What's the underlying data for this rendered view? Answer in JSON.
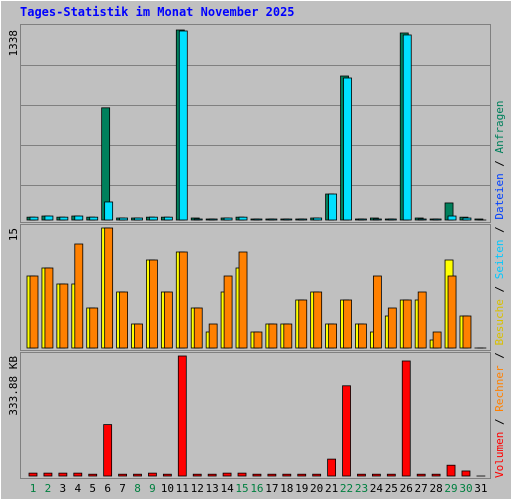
{
  "title": "Tages-Statistik im Monat November 2025",
  "legend": [
    {
      "name": "Volumen",
      "color": "#ff0000"
    },
    {
      "name": "Rechner",
      "color": "#ff8000"
    },
    {
      "name": "Besuche",
      "color": "#d8c000"
    },
    {
      "name": "Seiten",
      "color": "#00c8ff"
    },
    {
      "name": "Dateien",
      "color": "#0040ff"
    },
    {
      "name": "Anfragen",
      "color": "#00805c"
    }
  ],
  "legend_separator": " / ",
  "chart_data": [
    {
      "type": "bar",
      "ylim": [
        0,
        1338
      ],
      "yticks": [
        1338
      ],
      "series": [
        {
          "color": "#00805c",
          "values": [
            20,
            28,
            20,
            28,
            20,
            790,
            14,
            14,
            20,
            20,
            1338,
            14,
            7,
            14,
            20,
            7,
            7,
            7,
            7,
            14,
            183,
            1014,
            7,
            14,
            7,
            1317,
            14,
            7,
            120,
            20,
            7
          ]
        },
        {
          "color": "#00e0ff",
          "values": [
            20,
            28,
            20,
            28,
            20,
            127,
            14,
            14,
            20,
            20,
            1331,
            7,
            7,
            14,
            20,
            7,
            7,
            7,
            7,
            14,
            183,
            1000,
            7,
            7,
            7,
            1303,
            7,
            7,
            28,
            14,
            0
          ]
        }
      ]
    },
    {
      "type": "bar",
      "ylim": [
        0,
        15
      ],
      "yticks": [
        15
      ],
      "series": [
        {
          "color": "#ffff00",
          "values": [
            9,
            10,
            8,
            8,
            5,
            15,
            7,
            3,
            11,
            7,
            12,
            5,
            2,
            7,
            10,
            2,
            3,
            3,
            6,
            7,
            3,
            6,
            3,
            2,
            4,
            6,
            6,
            1,
            11,
            4,
            0
          ]
        },
        {
          "color": "#ff8000",
          "values": [
            9,
            10,
            8,
            13,
            5,
            15,
            7,
            3,
            11,
            7,
            12,
            5,
            3,
            9,
            12,
            2,
            3,
            3,
            6,
            7,
            3,
            6,
            3,
            9,
            5,
            6,
            7,
            2,
            9,
            4,
            0
          ]
        }
      ]
    },
    {
      "type": "bar",
      "ylim": [
        0,
        333.88
      ],
      "yticks": [
        {
          "value": 333.88,
          "label": "333.88 KB"
        }
      ],
      "categories": [
        "1",
        "2",
        "3",
        "4",
        "5",
        "6",
        "7",
        "8",
        "9",
        "10",
        "11",
        "12",
        "13",
        "14",
        "15",
        "16",
        "17",
        "18",
        "19",
        "20",
        "21",
        "22",
        "23",
        "24",
        "25",
        "26",
        "27",
        "28",
        "29",
        "30",
        "31"
      ],
      "category_colors": [
        "#008040",
        "#008040",
        "#000000",
        "#000000",
        "#000000",
        "#000000",
        "#000000",
        "#008040",
        "#008040",
        "#000000",
        "#000000",
        "#000000",
        "#000000",
        "#000000",
        "#008040",
        "#008040",
        "#000000",
        "#000000",
        "#000000",
        "#000000",
        "#000000",
        "#008040",
        "#008040",
        "#000000",
        "#000000",
        "#000000",
        "#000000",
        "#000000",
        "#008040",
        "#008040",
        "#000000"
      ],
      "series": [
        {
          "color": "#ff0000",
          "values": [
            8,
            8,
            8,
            8,
            5,
            143,
            5,
            5,
            8,
            5,
            333.88,
            5,
            5,
            8,
            8,
            5,
            5,
            5,
            5,
            5,
            47,
            251,
            5,
            5,
            5,
            320,
            5,
            5,
            30,
            14,
            0
          ]
        }
      ]
    }
  ]
}
